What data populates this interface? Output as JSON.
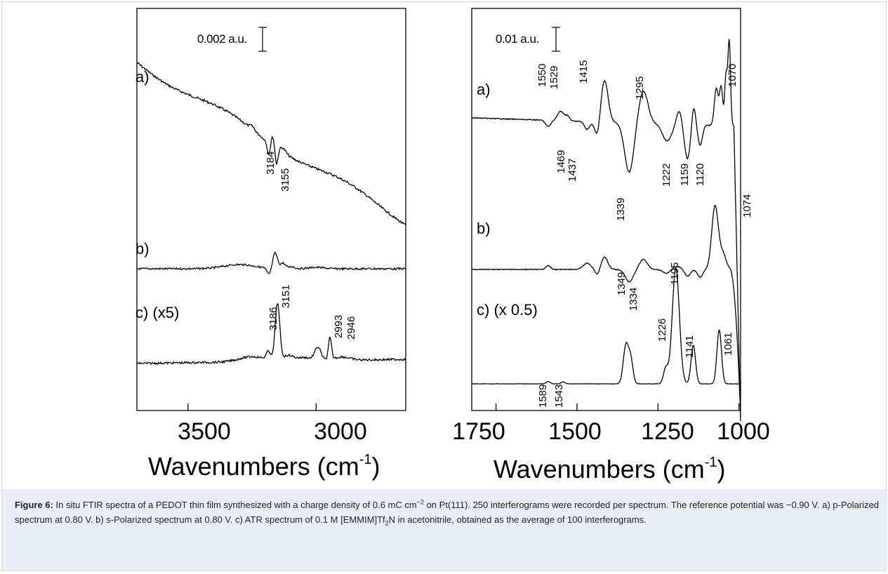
{
  "chart_data": [
    {
      "type": "line",
      "xlabel": "Wavenumbers (cm",
      "xlabel_sup": "-1",
      "xlabel_end": ")",
      "xlim": [
        3700,
        2650
      ],
      "xticks": [
        3500,
        3000
      ],
      "scale_bar": "0.002 a.u.",
      "series": [
        {
          "name": "a)",
          "baseline": 0.36,
          "peaks": [
            {
              "x": 3250,
              "y": 0.35,
              "w": 10
            },
            {
              "x": 3184,
              "y": -1.4,
              "w": 7
            },
            {
              "x": 3170,
              "y": 1.2,
              "w": 8
            },
            {
              "x": 3155,
              "y": -1.9,
              "w": 6
            },
            {
              "x": 3130,
              "y": 0.5,
              "w": 12
            }
          ]
        },
        {
          "name": "b)",
          "baseline": -0.2,
          "peaks": [
            {
              "x": 3184,
              "y": -0.9,
              "w": 8
            },
            {
              "x": 3160,
              "y": 2.2,
              "w": 9
            },
            {
              "x": 3130,
              "y": 0.8,
              "w": 10
            },
            {
              "x": 3095,
              "y": 0.3,
              "w": 12
            },
            {
              "x": 3300,
              "y": 0.6,
              "w": 60
            },
            {
              "x": 3000,
              "y": 0.2,
              "w": 30
            }
          ]
        },
        {
          "name": "c) (x5)",
          "baseline": -0.15,
          "peaks": [
            {
              "x": 3250,
              "y": 0.6,
              "w": 50
            },
            {
              "x": 3186,
              "y": 1.0,
              "w": 8
            },
            {
              "x": 3151,
              "y": 6.8,
              "w": 9
            },
            {
              "x": 3110,
              "y": 0.6,
              "w": 18
            },
            {
              "x": 3050,
              "y": 0.4,
              "w": 35
            },
            {
              "x": 2993,
              "y": 1.5,
              "w": 12
            },
            {
              "x": 2946,
              "y": 2.6,
              "w": 6
            },
            {
              "x": 2900,
              "y": 0.4,
              "w": 30
            }
          ]
        }
      ],
      "annotations": [
        "3184",
        "3155",
        "3151",
        "3186",
        "2993",
        "2946"
      ]
    },
    {
      "type": "line",
      "xlabel": "Wavenumbers (cm",
      "xlabel_sup": "-1",
      "xlabel_end": ")",
      "xlim": [
        1825,
        995
      ],
      "xticks": [
        1750,
        1500,
        1250,
        1000
      ],
      "scale_bar": "0.01 a.u.",
      "series": [
        {
          "name": "a)",
          "baseline": 0,
          "peaks": [
            {
              "x": 1589,
              "y": -0.8,
              "w": 8
            },
            {
              "x": 1550,
              "y": 1.2,
              "w": 10
            },
            {
              "x": 1529,
              "y": 0.6,
              "w": 6
            },
            {
              "x": 1469,
              "y": -1.0,
              "w": 8
            },
            {
              "x": 1437,
              "y": -2.0,
              "w": 8
            },
            {
              "x": 1415,
              "y": 5.4,
              "w": 11
            },
            {
              "x": 1339,
              "y": -6.4,
              "w": 14
            },
            {
              "x": 1295,
              "y": 4.2,
              "w": 14
            },
            {
              "x": 1222,
              "y": -2.2,
              "w": 14
            },
            {
              "x": 1185,
              "y": 1.8,
              "w": 8
            },
            {
              "x": 1159,
              "y": -4.4,
              "w": 9
            },
            {
              "x": 1140,
              "y": 2.6,
              "w": 6
            },
            {
              "x": 1120,
              "y": -2.6,
              "w": 7
            },
            {
              "x": 1070,
              "y": 4.8,
              "w": 6
            },
            {
              "x": 1055,
              "y": 5.0,
              "w": 5
            },
            {
              "x": 1040,
              "y": 6.5,
              "w": 4
            },
            {
              "x": 1030,
              "y": 11.0,
              "w": 4
            }
          ]
        },
        {
          "name": "b)",
          "baseline": 0,
          "peaks": [
            {
              "x": 1589,
              "y": 0.5,
              "w": 7
            },
            {
              "x": 1469,
              "y": 0.8,
              "w": 12
            },
            {
              "x": 1437,
              "y": -0.7,
              "w": 7
            },
            {
              "x": 1415,
              "y": 1.6,
              "w": 10
            },
            {
              "x": 1339,
              "y": -1.6,
              "w": 12
            },
            {
              "x": 1295,
              "y": 1.3,
              "w": 12
            },
            {
              "x": 1222,
              "y": -0.6,
              "w": 12
            },
            {
              "x": 1195,
              "y": 0.4,
              "w": 18
            },
            {
              "x": 1159,
              "y": -0.9,
              "w": 9
            },
            {
              "x": 1120,
              "y": -1.0,
              "w": 8
            },
            {
              "x": 1074,
              "y": 8.2,
              "w": 10
            },
            {
              "x": 1050,
              "y": 2.0,
              "w": 10
            }
          ]
        },
        {
          "name": "c) (x 0.5)",
          "baseline": 0,
          "peaks": [
            {
              "x": 1589,
              "y": 0.3,
              "w": 6
            },
            {
              "x": 1543,
              "y": 0.25,
              "w": 6
            },
            {
              "x": 1349,
              "y": 5.0,
              "w": 8
            },
            {
              "x": 1334,
              "y": 3.0,
              "w": 7
            },
            {
              "x": 1226,
              "y": 2.0,
              "w": 7
            },
            {
              "x": 1195,
              "y": 15.0,
              "w": 11
            },
            {
              "x": 1141,
              "y": 5.0,
              "w": 7
            },
            {
              "x": 1061,
              "y": 7.0,
              "w": 7
            }
          ]
        }
      ],
      "annotations": [
        "1550",
        "1529",
        "1415",
        "1295",
        "1070",
        "1469",
        "1437",
        "1222",
        "1159",
        "1120",
        "1339",
        "1074",
        "1195",
        "1349",
        "1334",
        "1226",
        "1141",
        "1061",
        "1589",
        "1543"
      ]
    }
  ],
  "caption": {
    "label": "Figure 6:",
    "p1": " In situ FTIR spectra of a PEDOT thin film synthesized with a charge density of 0.6 mC cm",
    "sup1": "−2",
    "p2": " on Pt(111). 250 interferograms were recorded per spectrum. The reference potential was −0.90 V. a) p-Polarized spectrum at 0.80 V. b) s-Polarized spectrum at 0.80 V. c) ATR spectrum of 0.1 M [EMMIM]Tf",
    "sub1": "2",
    "p3": "N in acetonitrile, obtained as the average of 100 interferograms."
  }
}
